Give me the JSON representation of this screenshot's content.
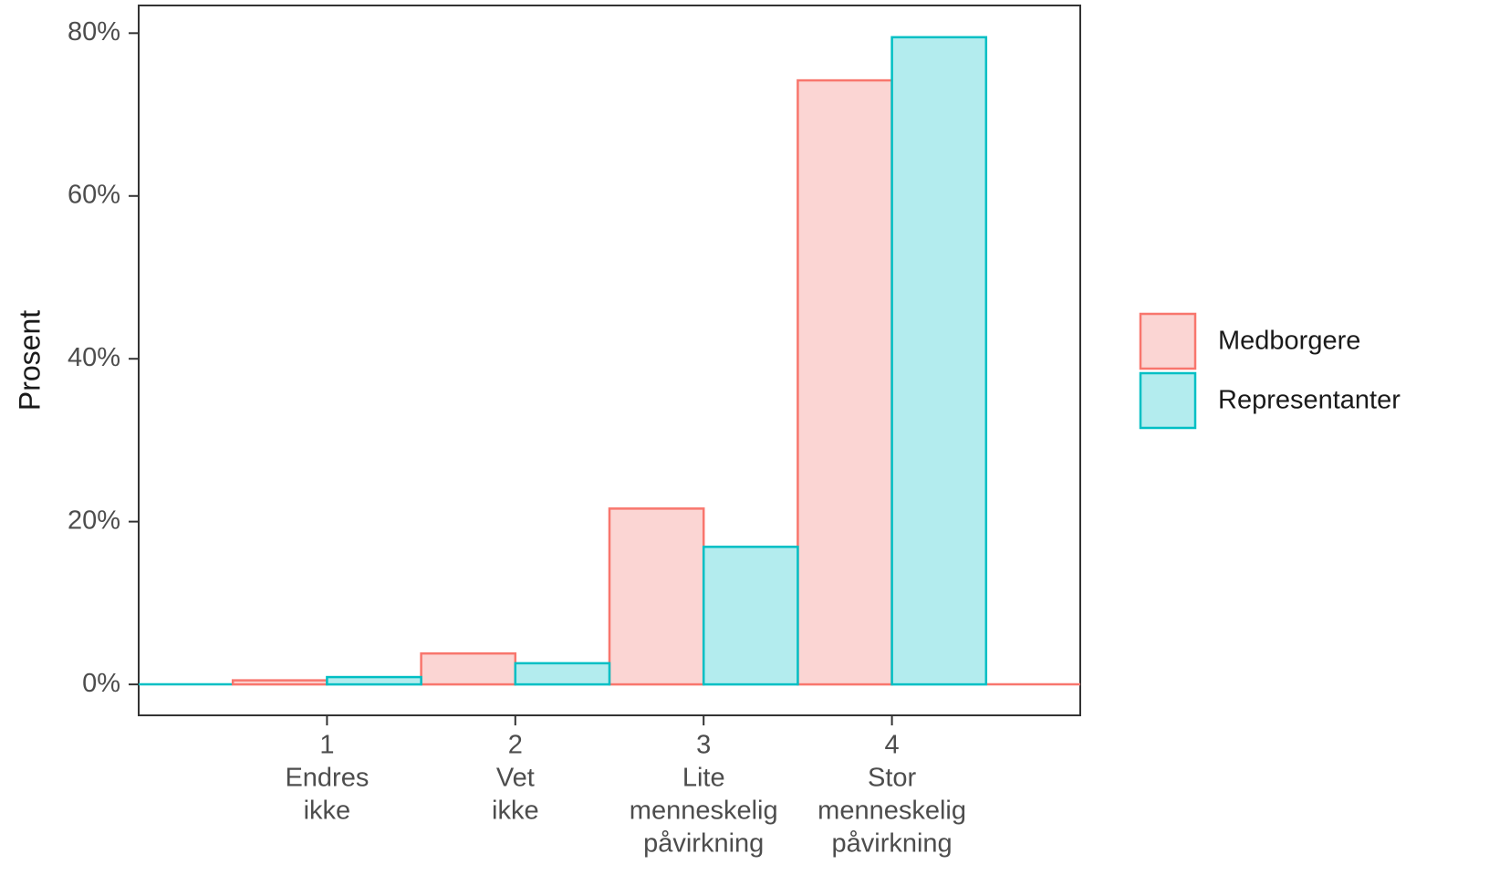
{
  "chart_data": {
    "type": "bar",
    "y_label": "Prosent",
    "categories": [
      [
        "1",
        "Endres",
        "ikke"
      ],
      [
        "2",
        "Vet",
        "ikke"
      ],
      [
        "3",
        "Lite",
        "menneskelig",
        "påvirkning"
      ],
      [
        "4",
        "Stor",
        "menneskelig",
        "påvirkning"
      ]
    ],
    "x": [
      1,
      2,
      3,
      4
    ],
    "xlim": [
      0,
      5
    ],
    "series": [
      {
        "name": "Medborgere",
        "color": "#f8766d",
        "fill": "#fbd5d3",
        "values": [
          0.5,
          3.8,
          21.6,
          74.2
        ]
      },
      {
        "name": "Representanter",
        "color": "#00bfc4",
        "fill": "#b3ecee",
        "values": [
          0.9,
          2.6,
          16.9,
          79.5
        ]
      }
    ],
    "ylim": [
      -3.8,
      83.4
    ],
    "yticks": [
      {
        "value": 0,
        "label": "0%"
      },
      {
        "value": 20,
        "label": "20%"
      },
      {
        "value": 40,
        "label": "40%"
      },
      {
        "value": 60,
        "label": "60%"
      },
      {
        "value": 80,
        "label": "80%"
      }
    ],
    "grid": false,
    "legend": "right"
  }
}
